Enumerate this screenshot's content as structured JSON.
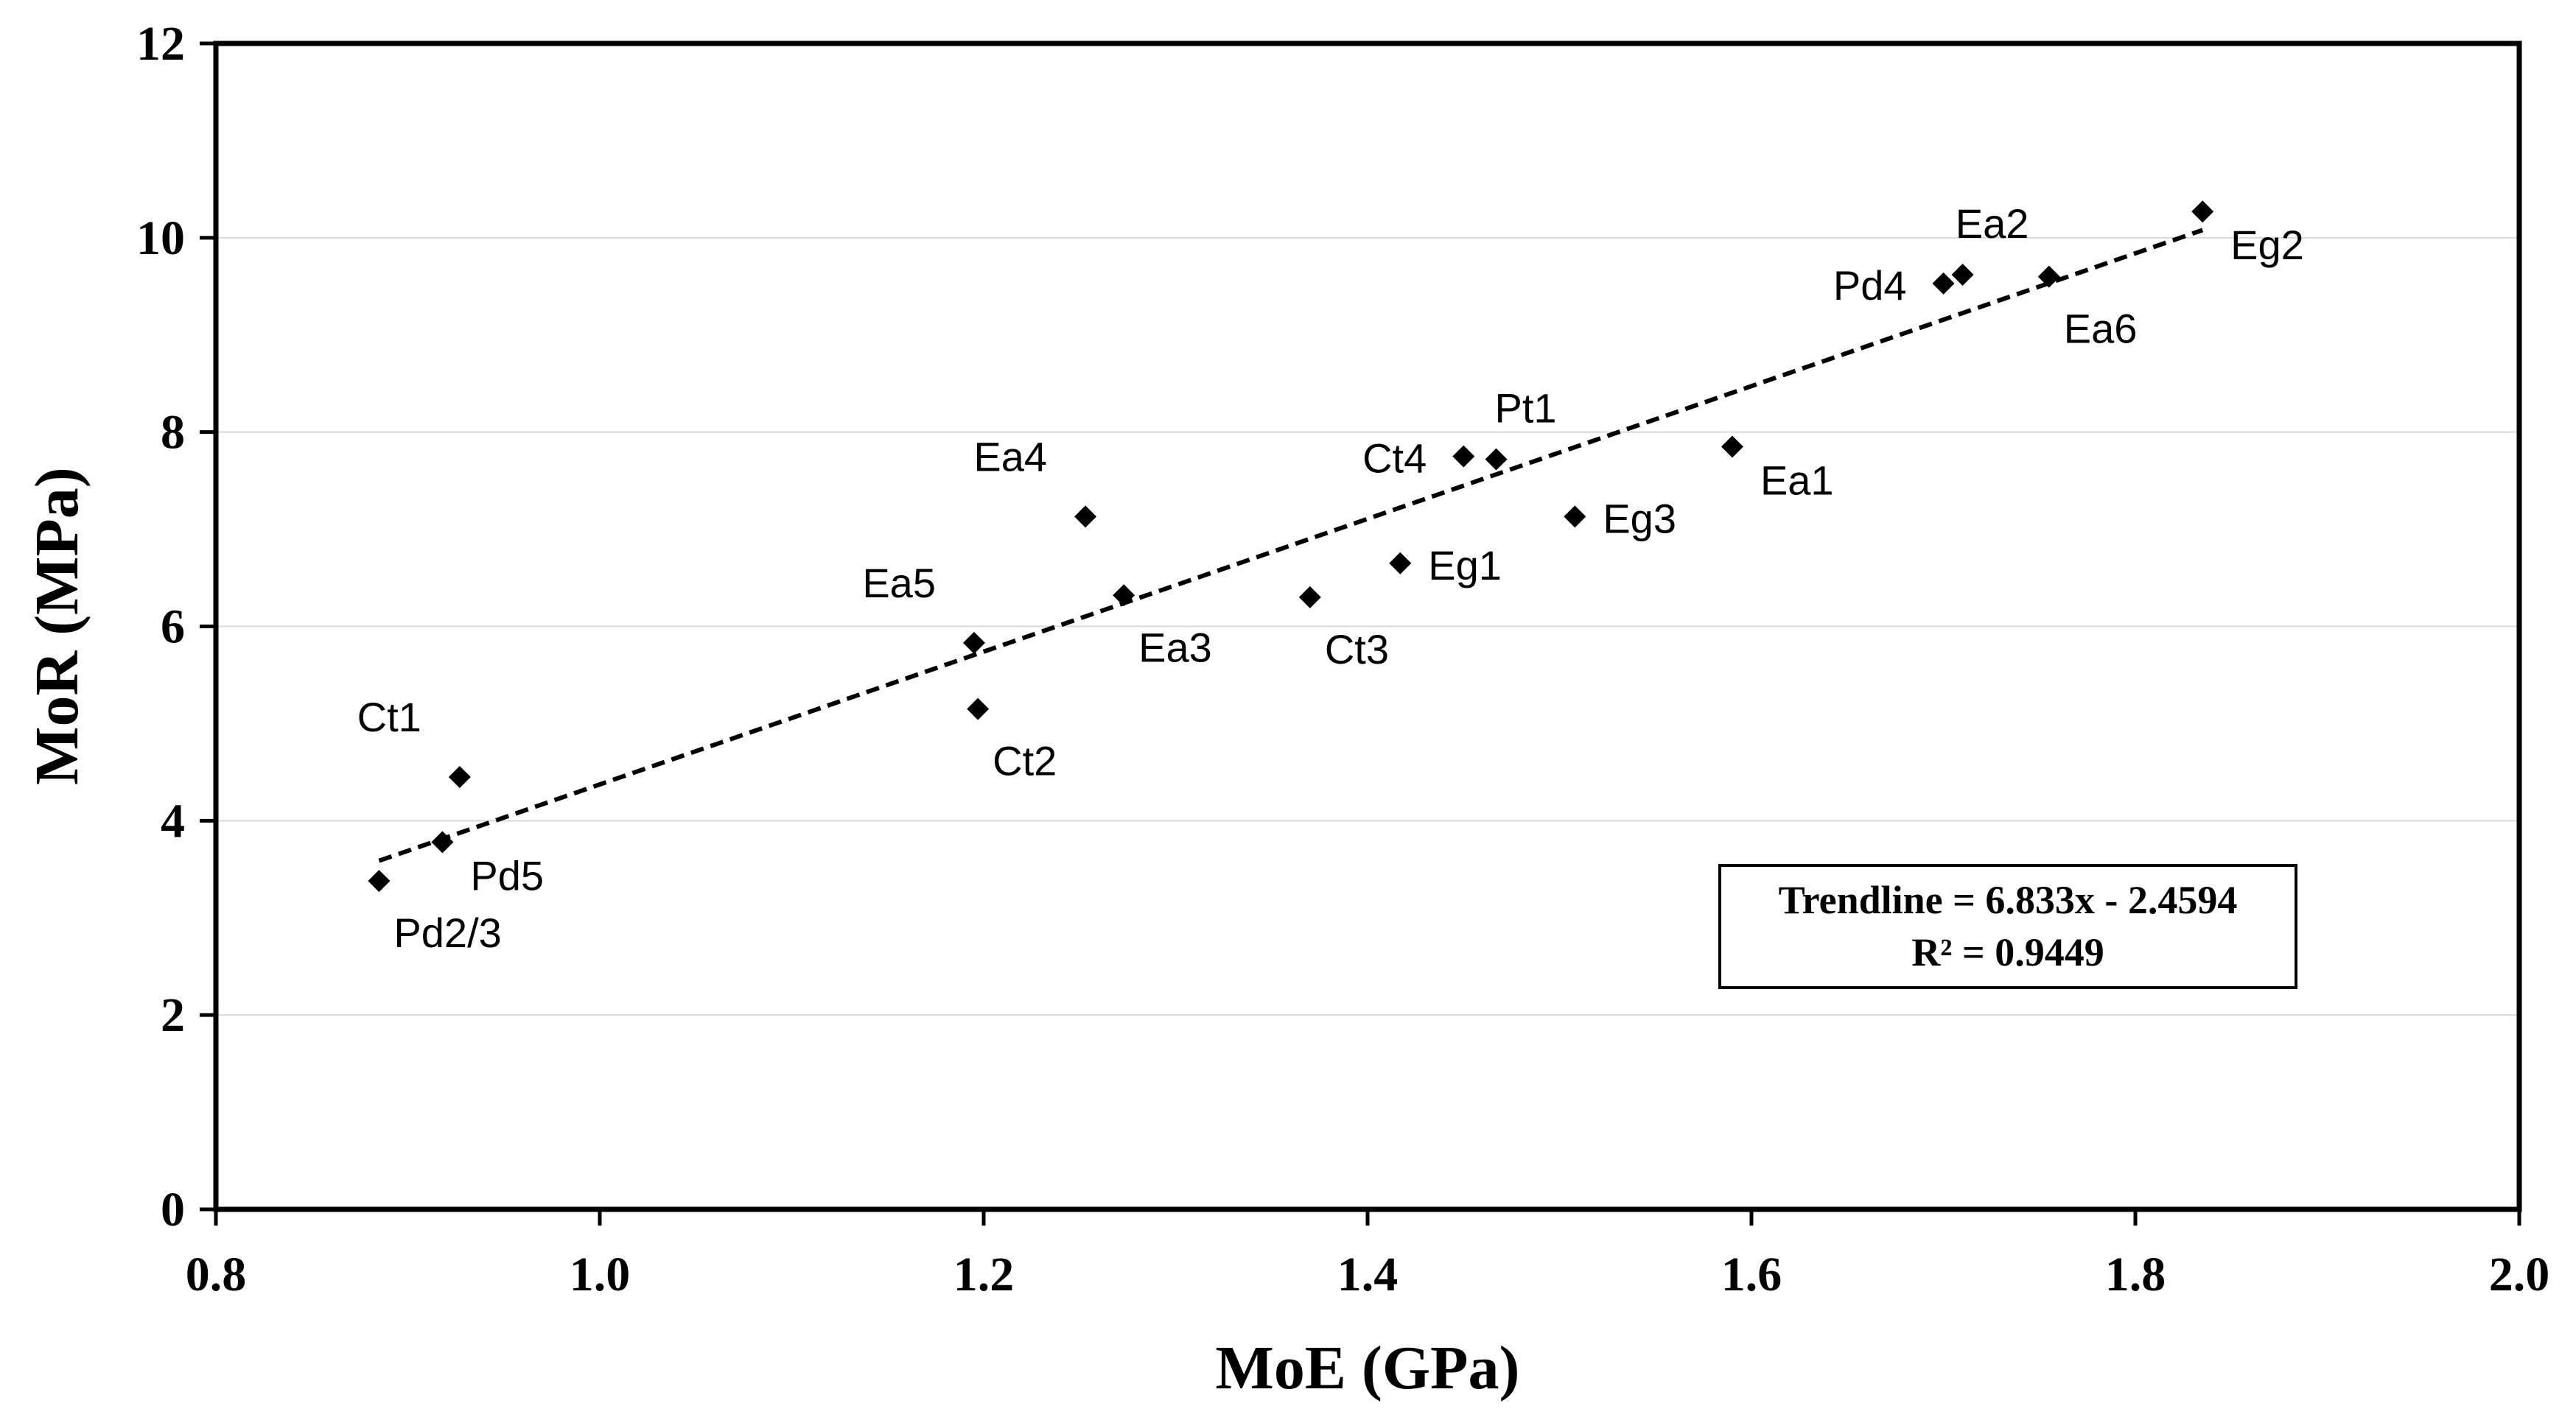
{
  "chart_data": {
    "type": "scatter",
    "title": "",
    "xlabel": "MoE (GPa)",
    "ylabel": "MoR (MPa)",
    "xlim": [
      0.8,
      2.0
    ],
    "ylim": [
      0,
      12
    ],
    "xticks": [
      0.8,
      1.0,
      1.2,
      1.4,
      1.6,
      1.8,
      2.0
    ],
    "xtick_labels": [
      "0.8",
      "1.0",
      "1.2",
      "1.4",
      "1.6",
      "1.8",
      "2.0"
    ],
    "yticks": [
      0,
      2,
      4,
      6,
      8,
      10,
      12
    ],
    "ytick_labels": [
      "0",
      "2",
      "4",
      "6",
      "8",
      "10",
      "12"
    ],
    "grid": "horizontal",
    "marker": "diamond",
    "marker_color": "#000000",
    "points": [
      {
        "label": "Pd2/3",
        "x": 0.885,
        "y": 3.38,
        "label_pos": "below-right"
      },
      {
        "label": "Pd5",
        "x": 0.918,
        "y": 3.78,
        "label_pos": "right-below"
      },
      {
        "label": "Ct1",
        "x": 0.927,
        "y": 4.45,
        "label_pos": "above-left"
      },
      {
        "label": "Ea5",
        "x": 1.195,
        "y": 5.83,
        "label_pos": "above-left"
      },
      {
        "label": "Ct2",
        "x": 1.197,
        "y": 5.15,
        "label_pos": "below-right"
      },
      {
        "label": "Ea4",
        "x": 1.253,
        "y": 7.13,
        "label_pos": "above-left"
      },
      {
        "label": "Ea3",
        "x": 1.273,
        "y": 6.32,
        "label_pos": "below-right"
      },
      {
        "label": "Ct3",
        "x": 1.37,
        "y": 6.3,
        "label_pos": "below-right"
      },
      {
        "label": "Eg1",
        "x": 1.417,
        "y": 6.65,
        "label_pos": "right"
      },
      {
        "label": "Ct4",
        "x": 1.45,
        "y": 7.75,
        "label_pos": "left"
      },
      {
        "label": "Pt1",
        "x": 1.467,
        "y": 7.72,
        "label_pos": "above"
      },
      {
        "label": "Eg3",
        "x": 1.508,
        "y": 7.13,
        "label_pos": "right"
      },
      {
        "label": "Ea1",
        "x": 1.59,
        "y": 7.85,
        "label_pos": "right-below"
      },
      {
        "label": "Pd4",
        "x": 1.7,
        "y": 9.53,
        "label_pos": "left"
      },
      {
        "label": "Ea2",
        "x": 1.71,
        "y": 9.62,
        "label_pos": "above"
      },
      {
        "label": "Ea6",
        "x": 1.755,
        "y": 9.6,
        "label_pos": "below-right"
      },
      {
        "label": "Eg2",
        "x": 1.835,
        "y": 10.27,
        "label_pos": "right-below"
      }
    ],
    "trendline": {
      "slope": 6.833,
      "intercept": -2.4594,
      "x_range": [
        0.885,
        1.835
      ],
      "style": "dashed",
      "equation_text": "Trendline = 6.833x - 2.4594",
      "r2_text": "R² = 0.9449"
    }
  }
}
